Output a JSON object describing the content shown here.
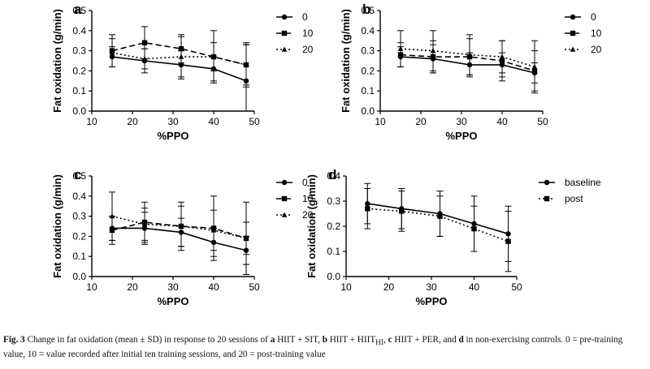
{
  "caption": {
    "lead": "Fig. 3",
    "text_1": "  Change in fat oxidation (mean ± SD) in response to 20 sessions of ",
    "a_letter": "a",
    "a_text": " HIIT + SIT, ",
    "b_letter": "b",
    "b_text": " HIIT + HIIT",
    "b_sub": "HI",
    "b_tail": ", ",
    "c_letter": "c",
    "c_text": " HIIT + PER, and ",
    "d_letter": "d",
    "d_text": " in non-exercising controls. 0 = pre-training value, 10 = value recorded after initial ten training sessions, and 20 = post-training value"
  },
  "chart_data": [
    {
      "panel": "a",
      "type": "line",
      "xlabel": "%PPO",
      "ylabel": "Fat oxidation (g/min)",
      "xlim": [
        10,
        50
      ],
      "ylim": [
        0,
        0.5
      ],
      "xticks": [
        10,
        20,
        30,
        40,
        50
      ],
      "yticks": [
        0.0,
        0.1,
        0.2,
        0.3,
        0.4,
        0.5
      ],
      "grid": false,
      "legend_position": "right",
      "series": [
        {
          "name": "0",
          "style": "solid",
          "marker": "circle",
          "x": [
            15,
            23,
            32,
            40,
            48
          ],
          "y": [
            0.27,
            0.25,
            0.23,
            0.21,
            0.15
          ],
          "sd": [
            0.05,
            0.06,
            0.07,
            0.06,
            0.18
          ]
        },
        {
          "name": "10",
          "style": "dashed",
          "marker": "square",
          "x": [
            15,
            23,
            32,
            40,
            48
          ],
          "y": [
            0.3,
            0.34,
            0.31,
            0.27,
            0.23
          ],
          "sd": [
            0.08,
            0.08,
            0.07,
            0.13,
            0.11
          ]
        },
        {
          "name": "20",
          "style": "dotted",
          "marker": "triangle",
          "x": [
            15,
            23,
            32,
            40,
            48
          ],
          "y": [
            0.29,
            0.26,
            0.27,
            0.27,
            0.23
          ],
          "sd": [
            0.07,
            0.05,
            0.1,
            0.07,
            0.1
          ]
        }
      ]
    },
    {
      "panel": "b",
      "type": "line",
      "xlabel": "%PPO",
      "ylabel": "Fat oxidation (g/min)",
      "xlim": [
        10,
        50
      ],
      "ylim": [
        0,
        0.5
      ],
      "xticks": [
        10,
        20,
        30,
        40,
        50
      ],
      "yticks": [
        0.0,
        0.1,
        0.2,
        0.3,
        0.4,
        0.5
      ],
      "grid": false,
      "legend_position": "right",
      "series": [
        {
          "name": "0",
          "style": "solid",
          "marker": "circle",
          "x": [
            15,
            23,
            32,
            40,
            48
          ],
          "y": [
            0.27,
            0.26,
            0.23,
            0.23,
            0.19
          ],
          "sd": [
            0.05,
            0.07,
            0.06,
            0.06,
            0.05
          ]
        },
        {
          "name": "10",
          "style": "dashed",
          "marker": "square",
          "x": [
            15,
            23,
            32,
            40,
            48
          ],
          "y": [
            0.28,
            0.27,
            0.27,
            0.25,
            0.2
          ],
          "sd": [
            0.06,
            0.08,
            0.09,
            0.1,
            0.1
          ]
        },
        {
          "name": "20",
          "style": "dotted",
          "marker": "triangle",
          "x": [
            15,
            23,
            32,
            40,
            48
          ],
          "y": [
            0.31,
            0.3,
            0.28,
            0.27,
            0.22
          ],
          "sd": [
            0.09,
            0.1,
            0.1,
            0.08,
            0.13
          ]
        }
      ]
    },
    {
      "panel": "c",
      "type": "line",
      "xlabel": "%PPO",
      "ylabel": "Fat oxidation (g/min)",
      "xlim": [
        10,
        50
      ],
      "ylim": [
        0,
        0.5
      ],
      "xticks": [
        10,
        20,
        30,
        40,
        50
      ],
      "yticks": [
        0.0,
        0.1,
        0.2,
        0.3,
        0.4,
        0.5
      ],
      "grid": false,
      "legend_position": "right",
      "series": [
        {
          "name": "0",
          "style": "solid",
          "marker": "circle",
          "x": [
            15,
            23,
            32,
            40,
            48
          ],
          "y": [
            0.24,
            0.24,
            0.22,
            0.17,
            0.13
          ],
          "sd": [
            0.06,
            0.08,
            0.07,
            0.07,
            0.07
          ]
        },
        {
          "name": "10",
          "style": "dashed",
          "marker": "square",
          "x": [
            15,
            23,
            32,
            40,
            48
          ],
          "y": [
            0.23,
            0.27,
            0.25,
            0.24,
            0.19
          ],
          "sd": [
            0.07,
            0.1,
            0.12,
            0.16,
            0.18
          ]
        },
        {
          "name": "20",
          "style": "dotted",
          "marker": "triangle",
          "x": [
            15,
            23,
            32,
            40,
            48
          ],
          "y": [
            0.3,
            0.26,
            0.25,
            0.23,
            0.19
          ],
          "sd": [
            0.12,
            0.08,
            0.1,
            0.1,
            0.08
          ]
        }
      ]
    },
    {
      "panel": "d",
      "type": "line",
      "xlabel": "%PPO",
      "ylabel": "Fat oxidation (g/min)",
      "xlim": [
        10,
        50
      ],
      "ylim": [
        0,
        0.4
      ],
      "xticks": [
        10,
        20,
        30,
        40,
        50
      ],
      "yticks": [
        0.0,
        0.1,
        0.2,
        0.3,
        0.4
      ],
      "grid": false,
      "legend_position": "right",
      "series": [
        {
          "name": "baseline",
          "style": "solid",
          "marker": "circle",
          "x": [
            15,
            23,
            32,
            40,
            48
          ],
          "y": [
            0.29,
            0.27,
            0.25,
            0.21,
            0.17
          ],
          "sd": [
            0.08,
            0.08,
            0.09,
            0.11,
            0.11
          ]
        },
        {
          "name": "post",
          "style": "dotted",
          "marker": "square",
          "x": [
            15,
            23,
            32,
            40,
            48
          ],
          "y": [
            0.27,
            0.26,
            0.24,
            0.19,
            0.14
          ],
          "sd": [
            0.08,
            0.08,
            0.08,
            0.09,
            0.12
          ]
        }
      ]
    }
  ]
}
